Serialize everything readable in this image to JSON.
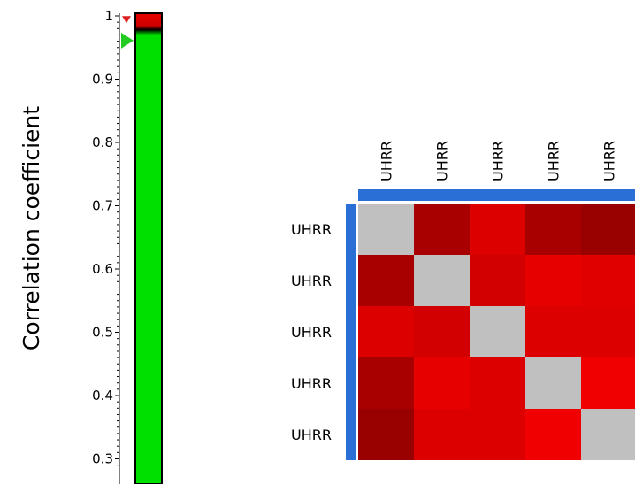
{
  "chart_data": [
    {
      "type": "colorbar",
      "ylabel": "Correlation coefficient",
      "ylim": [
        0.29,
        1.0
      ],
      "ticks": [
        "1",
        "0.9",
        "0.8",
        "0.7",
        "0.6",
        "0.5",
        "0.4",
        "0.3"
      ],
      "tick_values": [
        1.0,
        0.9,
        0.8,
        0.7,
        0.6,
        0.5,
        0.4,
        0.3
      ],
      "gradient": [
        {
          "value": 1.0,
          "color": "#e00000"
        },
        {
          "value": 0.985,
          "color": "#d00000"
        },
        {
          "value": 0.978,
          "color": "#000000"
        },
        {
          "value": 0.97,
          "color": "#00e000"
        },
        {
          "value": 0.29,
          "color": "#00e000"
        }
      ],
      "markers": [
        {
          "value": 0.994,
          "color": "#e02020",
          "direction": "down"
        },
        {
          "value": 0.961,
          "color": "#22cc22",
          "direction": "right"
        }
      ]
    },
    {
      "type": "heatmap",
      "row_labels": [
        "UHRR",
        "UHRR",
        "UHRR",
        "UHRR",
        "UHRR"
      ],
      "col_labels": [
        "UHRR",
        "UHRR",
        "UHRR",
        "UHRR",
        "UHRR"
      ],
      "diagonal_color": "#c0c0c0",
      "values": [
        [
          1.0,
          0.988,
          0.995,
          0.989,
          0.987
        ],
        [
          0.988,
          1.0,
          0.994,
          0.997,
          0.996
        ],
        [
          0.995,
          0.994,
          1.0,
          0.995,
          0.995
        ],
        [
          0.989,
          0.997,
          0.995,
          1.0,
          0.999
        ],
        [
          0.987,
          0.996,
          0.995,
          0.999,
          1.0
        ]
      ],
      "colors": [
        [
          "#c0c0c0",
          "#a80000",
          "#dc0000",
          "#a80000",
          "#990000"
        ],
        [
          "#a80000",
          "#c0c0c0",
          "#d20000",
          "#e60000",
          "#e00000"
        ],
        [
          "#dc0000",
          "#d20000",
          "#c0c0c0",
          "#dc0000",
          "#dc0000"
        ],
        [
          "#a80000",
          "#e60000",
          "#dc0000",
          "#c0c0c0",
          "#f00000"
        ],
        [
          "#990000",
          "#dc0000",
          "#dc0000",
          "#f00000",
          "#c0c0c0"
        ]
      ],
      "dendrogram_color": "#2a6fd6"
    }
  ]
}
